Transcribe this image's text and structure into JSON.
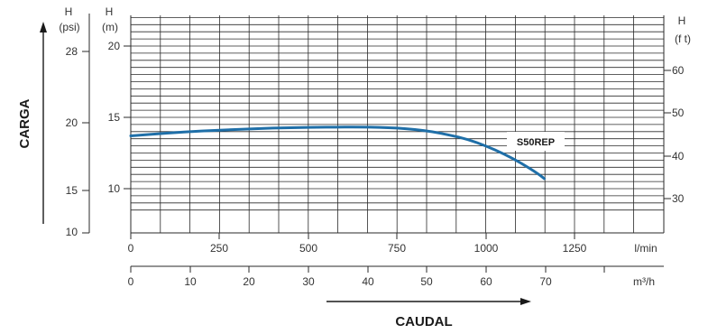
{
  "chart_data": {
    "type": "line",
    "title": "",
    "ylabel": "CARGA",
    "xlabel": "CAUDAL",
    "grid": true,
    "x_lpm": {
      "unit": "l/min",
      "ticks": [
        "0",
        "250",
        "500",
        "750",
        "1000",
        "1250"
      ],
      "range": [
        0,
        1500
      ]
    },
    "x_m3h": {
      "unit": "m³/h",
      "ticks": [
        "0",
        "10",
        "20",
        "30",
        "40",
        "50",
        "60",
        "70"
      ],
      "range": [
        0,
        90
      ]
    },
    "y_psi": {
      "header": "H",
      "unit": "(psi)",
      "ticks": [
        "10",
        "15",
        "20",
        "28"
      ],
      "tick_values": [
        10,
        15,
        20,
        28
      ]
    },
    "y_m": {
      "header": "H",
      "unit": "(m)",
      "ticks": [
        "10",
        "15",
        "20"
      ],
      "range": [
        7.5,
        21.5
      ]
    },
    "y_ft": {
      "header": "H",
      "unit": "(f t)",
      "ticks": [
        "30",
        "40",
        "50",
        "60"
      ],
      "tick_values": [
        30,
        40,
        50,
        60
      ]
    },
    "series": [
      {
        "name": "S50REP",
        "color": "#1f6fa8",
        "x": [
          0,
          100,
          200,
          300,
          400,
          500,
          600,
          650,
          700,
          750,
          800,
          850,
          900,
          950,
          1000,
          1050,
          1100,
          1150,
          1165
        ],
        "y": [
          13.7,
          13.9,
          14.05,
          14.15,
          14.25,
          14.3,
          14.32,
          14.32,
          14.3,
          14.25,
          14.15,
          14.0,
          13.75,
          13.45,
          13.0,
          12.45,
          11.8,
          11.0,
          10.7
        ]
      }
    ]
  }
}
